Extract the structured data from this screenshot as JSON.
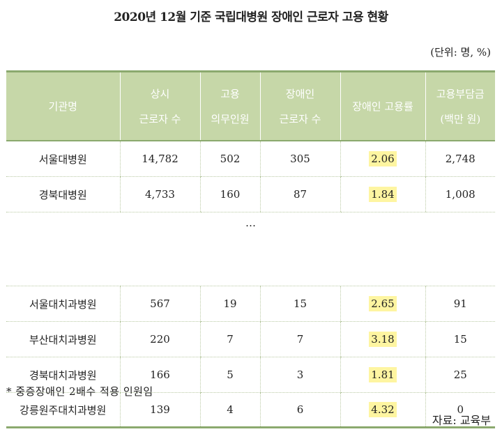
{
  "title": "2020년 12월 기준 국립대병원 장애인 근로자 고용 현황",
  "unit": "(단위: 명, %)",
  "table": {
    "headers": [
      [
        "기관명"
      ],
      [
        "상시",
        "근로자 수"
      ],
      [
        "고용",
        "의무인원"
      ],
      [
        "장애인",
        "근로자 수"
      ],
      [
        "장애인 고용률"
      ],
      [
        "고용부담금",
        "(백만 원)"
      ]
    ],
    "rows": [
      {
        "name": "서울대병원",
        "workers": "14,782",
        "required": "502",
        "disabled": "305",
        "rate": "2.06",
        "levy": "2,748"
      },
      {
        "name": "경북대병원",
        "workers": "4,733",
        "required": "160",
        "disabled": "87",
        "rate": "1.84",
        "levy": "1,008"
      },
      {
        "name": "서울대치과병원",
        "workers": "567",
        "required": "19",
        "disabled": "15",
        "rate": "2.65",
        "levy": "91"
      },
      {
        "name": "부산대치과병원",
        "workers": "220",
        "required": "7",
        "disabled": "7",
        "rate": "3.18",
        "levy": "15"
      },
      {
        "name": "경북대치과병원",
        "workers": "166",
        "required": "5",
        "disabled": "3",
        "rate": "1.81",
        "levy": "25"
      },
      {
        "name": "강릉원주대치과병원",
        "workers": "139",
        "required": "4",
        "disabled": "6",
        "rate": "4.32",
        "levy": "0"
      }
    ],
    "ellipsis": "…",
    "rate_highlight_color": "#fef5a1",
    "header_color": "#c6d7a8"
  },
  "note": "* 중증장애인 2배수 적용 인원임",
  "source": "자료: 교육부"
}
